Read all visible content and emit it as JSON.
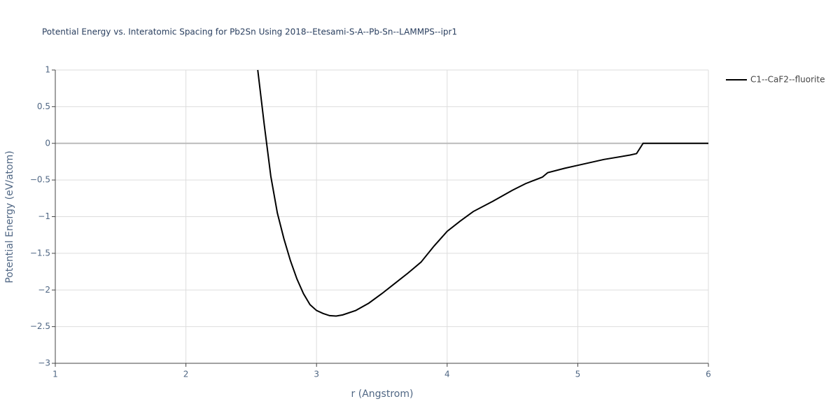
{
  "chart_data": {
    "type": "line",
    "title": "Potential Energy vs. Interatomic Spacing for Pb2Sn Using 2018--Etesami-S-A--Pb-Sn--LAMMPS--ipr1",
    "x_label": "r (Angstrom)",
    "y_label": "Potential Energy (eV/atom)",
    "xlim": [
      1,
      6
    ],
    "ylim": [
      -3,
      1
    ],
    "xticks": [
      1,
      2,
      3,
      4,
      5,
      6
    ],
    "yticks": [
      {
        "value": -3,
        "label": "−3"
      },
      {
        "value": -2.5,
        "label": "−2.5"
      },
      {
        "value": -2,
        "label": "−2"
      },
      {
        "value": -1.5,
        "label": "−1.5"
      },
      {
        "value": -1,
        "label": "−1"
      },
      {
        "value": -0.5,
        "label": "−0.5"
      },
      0,
      0.5,
      1
    ],
    "grid": true,
    "legend_position": "right",
    "series": [
      {
        "name": "C1--CaF2--fluorite",
        "color": "#000000",
        "x": [
          2.55,
          2.6,
          2.65,
          2.7,
          2.75,
          2.8,
          2.85,
          2.9,
          2.95,
          3.0,
          3.05,
          3.1,
          3.15,
          3.2,
          3.3,
          3.4,
          3.5,
          3.6,
          3.7,
          3.8,
          3.9,
          4.0,
          4.1,
          4.2,
          4.35,
          4.5,
          4.6,
          4.73,
          4.77,
          4.9,
          5.0,
          5.2,
          5.4,
          5.45,
          5.5,
          6.0
        ],
        "values": [
          1.0,
          0.25,
          -0.45,
          -0.95,
          -1.3,
          -1.6,
          -1.85,
          -2.05,
          -2.2,
          -2.28,
          -2.32,
          -2.35,
          -2.355,
          -2.34,
          -2.28,
          -2.18,
          -2.05,
          -1.91,
          -1.77,
          -1.62,
          -1.4,
          -1.2,
          -1.06,
          -0.93,
          -0.79,
          -0.64,
          -0.55,
          -0.46,
          -0.4,
          -0.34,
          -0.3,
          -0.22,
          -0.16,
          -0.14,
          0,
          0
        ]
      }
    ]
  }
}
